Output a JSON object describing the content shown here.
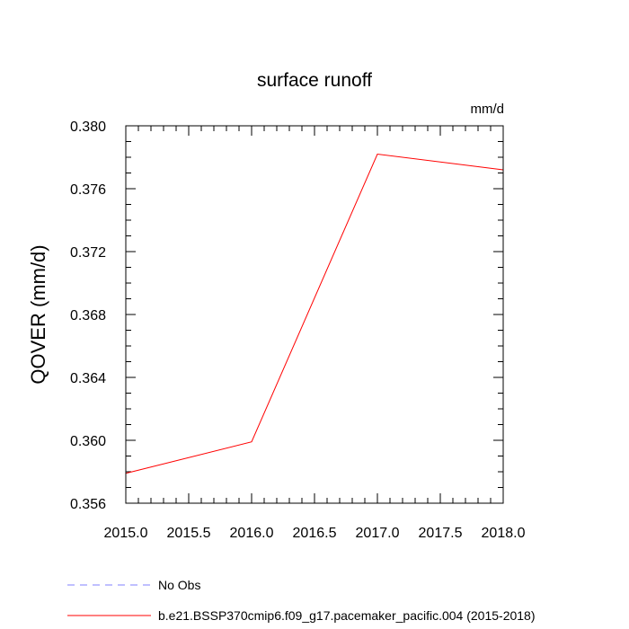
{
  "chart_data": {
    "type": "line",
    "title": "surface runoff",
    "units_label": "mm/d",
    "ylabel": "QOVER  (mm/d)",
    "xlabel": "",
    "xlim": [
      2015.0,
      2018.0
    ],
    "ylim": [
      0.356,
      0.38
    ],
    "x_ticks": [
      2015.0,
      2015.5,
      2016.0,
      2016.5,
      2017.0,
      2017.5,
      2018.0
    ],
    "x_tick_labels": [
      "2015.0",
      "2015.5",
      "2016.0",
      "2016.5",
      "2017.0",
      "2017.5",
      "2018.0"
    ],
    "y_ticks": [
      0.356,
      0.36,
      0.364,
      0.368,
      0.372,
      0.376,
      0.38
    ],
    "y_tick_labels": [
      "0.356",
      "0.360",
      "0.364",
      "0.368",
      "0.372",
      "0.376",
      "0.380"
    ],
    "grid": false,
    "legend_placement": "bottom-left",
    "series": [
      {
        "name": "b.e21.BSSP370cmip6.f09_g17.pacemaker_pacific.004 (2015-2018)",
        "color": "#ff0000",
        "dash": "solid",
        "x": [
          2015,
          2016,
          2017,
          2018
        ],
        "values": [
          0.3579,
          0.3599,
          0.3782,
          0.3772
        ]
      }
    ],
    "legend": [
      {
        "label": "No Obs",
        "color": "#8080ff",
        "dash": "dashed"
      },
      {
        "label": "b.e21.BSSP370cmip6.f09_g17.pacemaker_pacific.004 (2015-2018)",
        "color": "#ff0000",
        "dash": "solid"
      }
    ]
  }
}
